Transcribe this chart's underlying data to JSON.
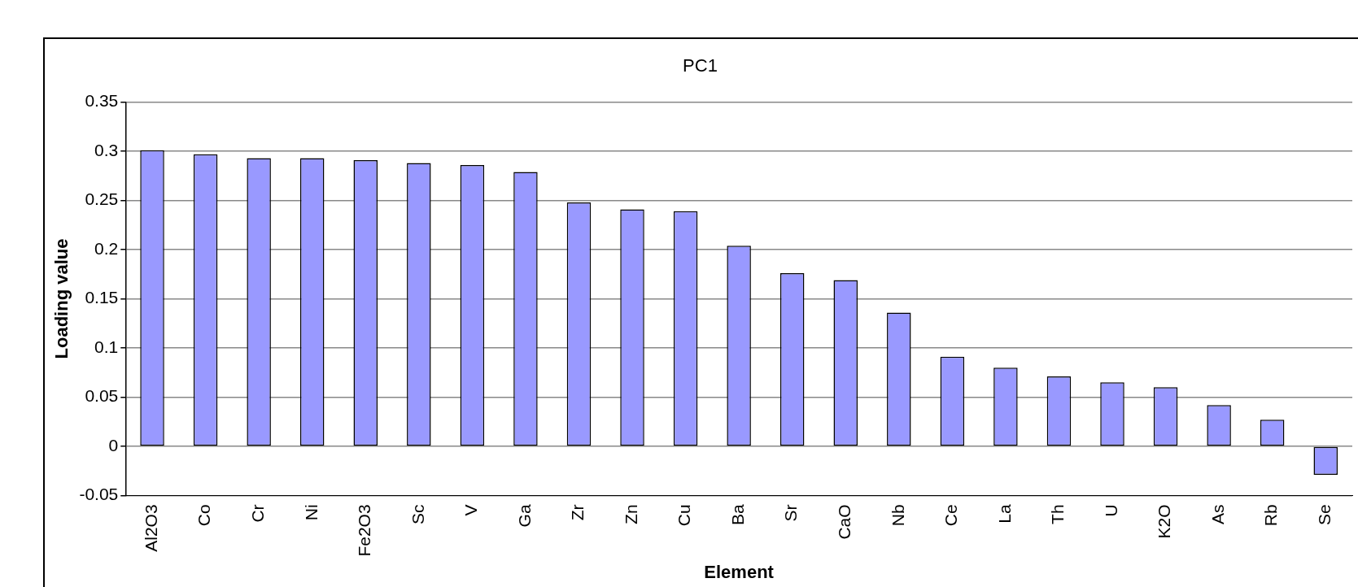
{
  "chart_data": {
    "type": "bar",
    "title": "PC1",
    "xlabel": "Element",
    "ylabel": "Loading value",
    "categories": [
      "Al2O3",
      "Co",
      "Cr",
      "Ni",
      "Fe2O3",
      "Sc",
      "V",
      "Ga",
      "Zr",
      "Zn",
      "Cu",
      "Ba",
      "Sr",
      "CaO",
      "Nb",
      "Ce",
      "La",
      "Th",
      "U",
      "K2O",
      "As",
      "Rb",
      "Se"
    ],
    "values": [
      0.301,
      0.297,
      0.293,
      0.293,
      0.291,
      0.288,
      0.286,
      0.279,
      0.248,
      0.241,
      0.239,
      0.204,
      0.176,
      0.169,
      0.136,
      0.091,
      0.08,
      0.071,
      0.065,
      0.06,
      0.042,
      0.027,
      -0.029
    ],
    "color": "#9999ff",
    "ylim": [
      -0.05,
      0.35
    ],
    "yticks": [
      -0.05,
      0,
      0.05,
      0.1,
      0.15,
      0.2,
      0.25,
      0.3,
      0.35
    ],
    "grid": "y",
    "legend": false
  }
}
